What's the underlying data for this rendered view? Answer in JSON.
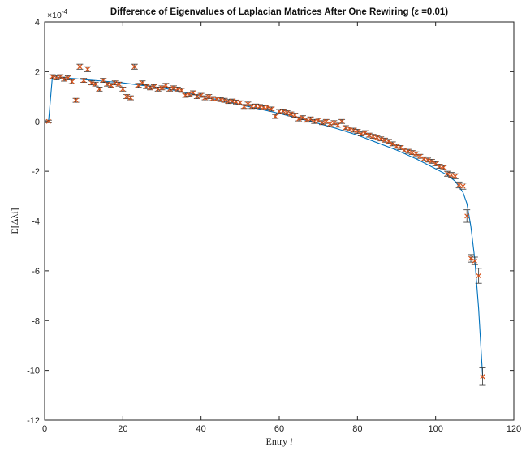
{
  "chart_data": {
    "type": "line",
    "title": "Difference of Eigenvalues of Laplacian Matrices After One Rewiring (ε =0.01)",
    "xlabel": "Entry i",
    "ylabel": "E[Δλi]",
    "y_exponent_label": "×10^-4",
    "y_scale_factor": 0.0001,
    "xlim": [
      0,
      120
    ],
    "ylim": [
      -12,
      4
    ],
    "x_ticks": [
      0,
      20,
      40,
      60,
      80,
      100,
      120
    ],
    "y_ticks": [
      -12,
      -10,
      -8,
      -6,
      -4,
      -2,
      0,
      2,
      4
    ],
    "grid": false,
    "series": [
      {
        "kind": "fitted-curve",
        "color": "#0072BD",
        "x": [
          1,
          2,
          3,
          5,
          8,
          10,
          15,
          20,
          25,
          30,
          35,
          40,
          45,
          50,
          55,
          60,
          65,
          70,
          75,
          80,
          85,
          90,
          95,
          100,
          103,
          105,
          107,
          108,
          109,
          110,
          111,
          112
        ],
        "y": [
          0,
          1.82,
          1.78,
          1.75,
          1.72,
          1.68,
          1.62,
          1.55,
          1.45,
          1.35,
          1.2,
          1.02,
          0.85,
          0.67,
          0.5,
          0.32,
          0.12,
          -0.08,
          -0.3,
          -0.55,
          -0.85,
          -1.15,
          -1.5,
          -1.9,
          -2.15,
          -2.4,
          -2.85,
          -3.3,
          -4.2,
          -5.5,
          -7.5,
          -10.2
        ]
      },
      {
        "kind": "error-bar-points",
        "color": "#D95319",
        "errorbar_color": "#333333",
        "x": [
          1,
          2,
          3,
          4,
          5,
          6,
          7,
          8,
          9,
          10,
          11,
          12,
          13,
          14,
          15,
          16,
          17,
          18,
          19,
          20,
          21,
          22,
          23,
          24,
          25,
          26,
          27,
          28,
          29,
          30,
          31,
          32,
          33,
          34,
          35,
          36,
          37,
          38,
          39,
          40,
          41,
          42,
          43,
          44,
          45,
          46,
          47,
          48,
          49,
          50,
          51,
          52,
          53,
          54,
          55,
          56,
          57,
          58,
          59,
          60,
          61,
          62,
          63,
          64,
          65,
          66,
          67,
          68,
          69,
          70,
          71,
          72,
          73,
          74,
          75,
          76,
          77,
          78,
          79,
          80,
          81,
          82,
          83,
          84,
          85,
          86,
          87,
          88,
          89,
          90,
          91,
          92,
          93,
          94,
          95,
          96,
          97,
          98,
          99,
          100,
          101,
          102,
          103,
          104,
          105,
          106,
          107,
          108,
          109,
          110,
          111,
          112
        ],
        "y": [
          0,
          1.8,
          1.75,
          1.8,
          1.7,
          1.75,
          1.6,
          0.85,
          2.2,
          1.65,
          2.1,
          1.55,
          1.5,
          1.3,
          1.65,
          1.5,
          1.45,
          1.55,
          1.5,
          1.3,
          1.0,
          0.95,
          2.2,
          1.45,
          1.55,
          1.4,
          1.35,
          1.4,
          1.3,
          1.35,
          1.45,
          1.3,
          1.35,
          1.3,
          1.25,
          1.05,
          1.1,
          1.15,
          1.0,
          1.05,
          0.95,
          1.0,
          0.92,
          0.9,
          0.88,
          0.85,
          0.8,
          0.82,
          0.78,
          0.75,
          0.6,
          0.7,
          0.6,
          0.62,
          0.6,
          0.55,
          0.58,
          0.5,
          0.2,
          0.4,
          0.42,
          0.35,
          0.3,
          0.25,
          0.1,
          0.15,
          0.05,
          0.1,
          0.0,
          0.05,
          -0.05,
          0.0,
          -0.1,
          -0.05,
          -0.15,
          0.0,
          -0.25,
          -0.3,
          -0.35,
          -0.4,
          -0.5,
          -0.45,
          -0.55,
          -0.6,
          -0.65,
          -0.7,
          -0.75,
          -0.8,
          -0.9,
          -1.0,
          -1.05,
          -1.15,
          -1.2,
          -1.25,
          -1.3,
          -1.4,
          -1.5,
          -1.55,
          -1.6,
          -1.7,
          -1.8,
          -1.85,
          -2.1,
          -2.15,
          -2.2,
          -2.55,
          -2.6,
          -3.8,
          -5.5,
          -5.6,
          -6.2,
          -10.25
        ],
        "err": [
          0.05,
          0.08,
          0.08,
          0.08,
          0.08,
          0.08,
          0.08,
          0.08,
          0.1,
          0.08,
          0.1,
          0.08,
          0.08,
          0.08,
          0.08,
          0.08,
          0.08,
          0.08,
          0.08,
          0.08,
          0.08,
          0.08,
          0.1,
          0.08,
          0.08,
          0.08,
          0.08,
          0.08,
          0.08,
          0.08,
          0.08,
          0.08,
          0.08,
          0.08,
          0.08,
          0.08,
          0.08,
          0.08,
          0.08,
          0.08,
          0.08,
          0.08,
          0.08,
          0.08,
          0.08,
          0.08,
          0.08,
          0.08,
          0.08,
          0.08,
          0.08,
          0.08,
          0.08,
          0.08,
          0.08,
          0.08,
          0.08,
          0.08,
          0.08,
          0.08,
          0.08,
          0.08,
          0.08,
          0.08,
          0.08,
          0.08,
          0.08,
          0.08,
          0.08,
          0.08,
          0.08,
          0.08,
          0.08,
          0.08,
          0.08,
          0.08,
          0.08,
          0.08,
          0.08,
          0.08,
          0.08,
          0.08,
          0.08,
          0.08,
          0.08,
          0.08,
          0.08,
          0.08,
          0.08,
          0.08,
          0.08,
          0.08,
          0.08,
          0.08,
          0.08,
          0.08,
          0.08,
          0.08,
          0.08,
          0.08,
          0.08,
          0.08,
          0.1,
          0.1,
          0.1,
          0.12,
          0.12,
          0.25,
          0.15,
          0.15,
          0.3,
          0.35
        ]
      }
    ]
  }
}
